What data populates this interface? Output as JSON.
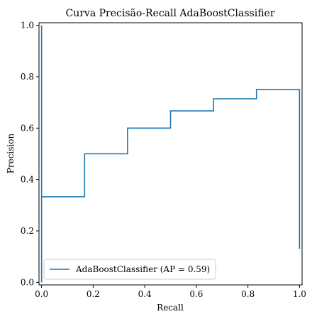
{
  "chart_data": {
    "type": "line",
    "title": "Curva Precisão-Recall AdaBoostClassifier",
    "xlabel": "Recall",
    "ylabel": "Precision",
    "xlim": [
      -0.01,
      1.01
    ],
    "ylim": [
      -0.01,
      1.01
    ],
    "xticks": [
      "0.0",
      "0.2",
      "0.4",
      "0.6",
      "0.8",
      "1.0"
    ],
    "yticks": [
      "0.0",
      "0.2",
      "0.4",
      "0.6",
      "0.8",
      "1.0"
    ],
    "grid": false,
    "legend_position": "lower-left",
    "step": "post",
    "series": [
      {
        "name": "AdaBoostClassifier (AP = 0.59)",
        "color": "#1f77b4",
        "x": [
          0.0,
          0.0,
          0.0,
          0.1667,
          0.3333,
          0.5,
          0.6667,
          0.8333,
          1.0,
          1.0
        ],
        "y": [
          1.0,
          0.0,
          0.333,
          0.5,
          0.6,
          0.667,
          0.714,
          0.75,
          0.75,
          0.13
        ]
      }
    ]
  }
}
